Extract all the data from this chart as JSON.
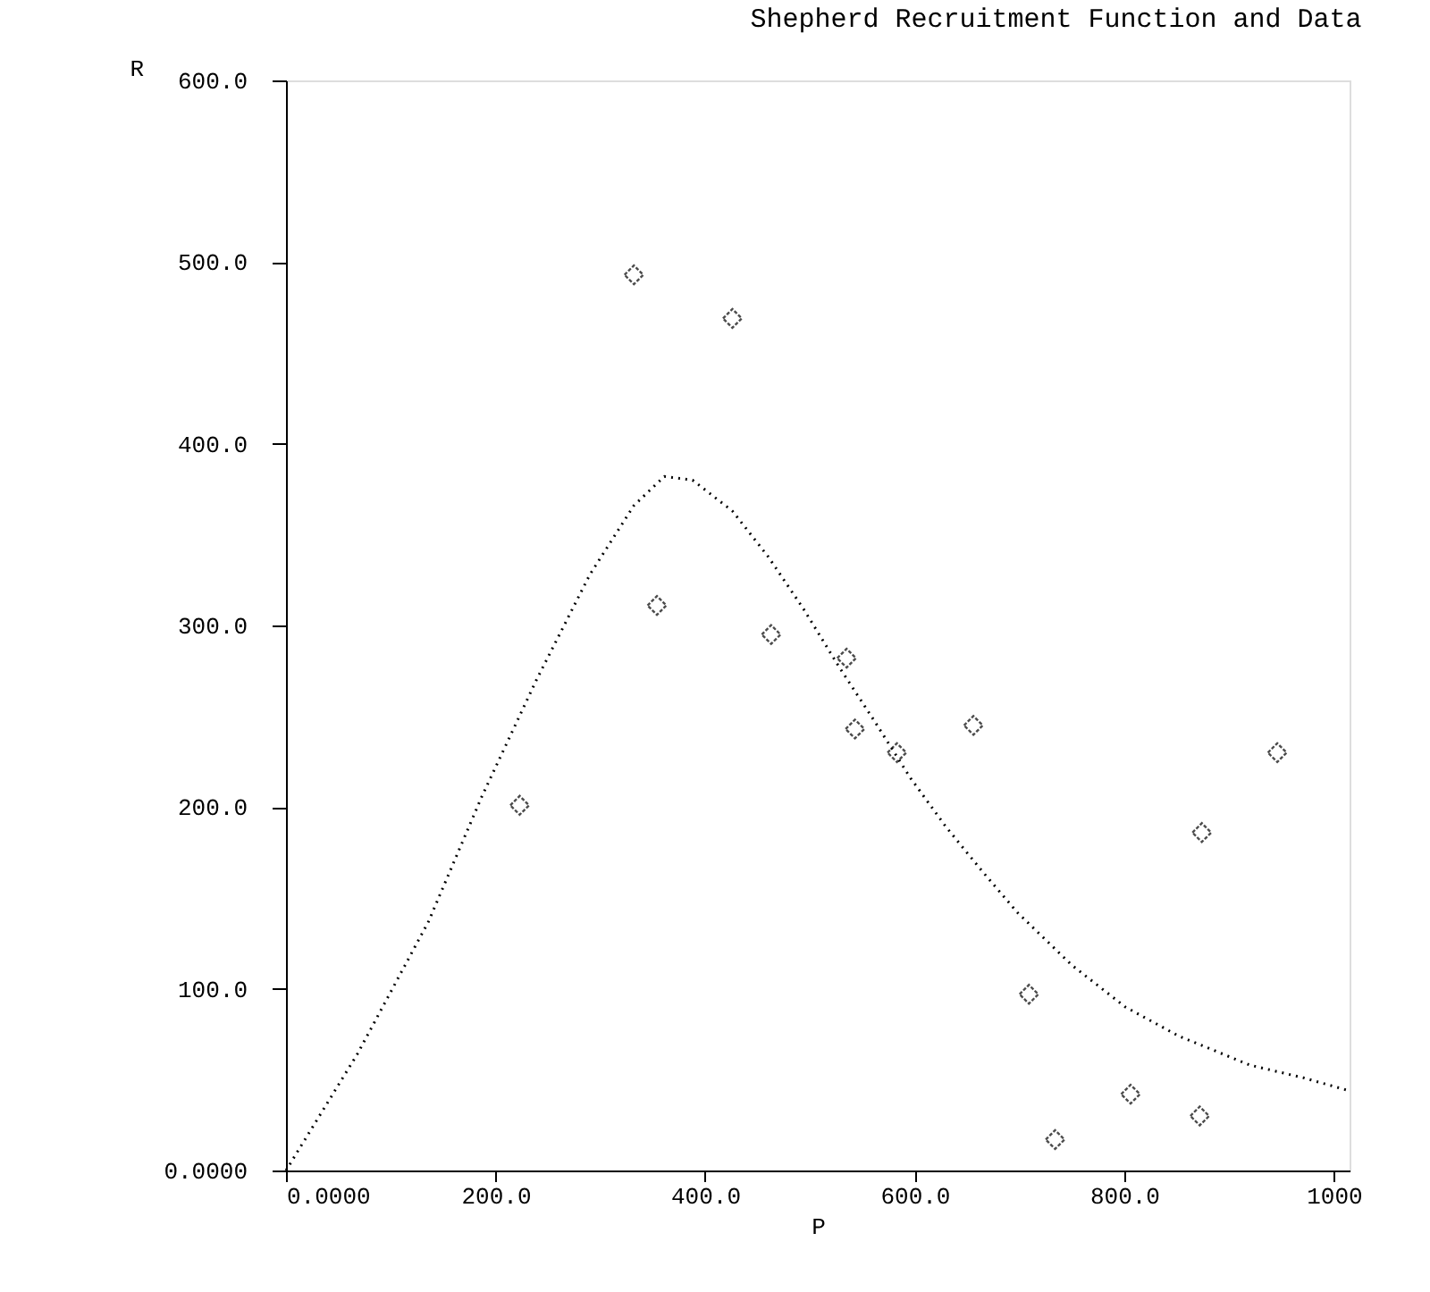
{
  "chart_data": {
    "type": "scatter",
    "title": "Shepherd Recruitment Function and Data",
    "xlabel": "P",
    "ylabel": "R",
    "xlim": [
      0,
      1015
    ],
    "ylim": [
      0,
      600
    ],
    "xticks": [
      {
        "value": 0,
        "label": "0.0000"
      },
      {
        "value": 200,
        "label": "200.0"
      },
      {
        "value": 400,
        "label": "400.0"
      },
      {
        "value": 600,
        "label": "600.0"
      },
      {
        "value": 800,
        "label": "800.0"
      },
      {
        "value": 1000,
        "label": "1000"
      }
    ],
    "yticks": [
      {
        "value": 0,
        "label": "0.0000"
      },
      {
        "value": 100,
        "label": "100.0"
      },
      {
        "value": 200,
        "label": "200.0"
      },
      {
        "value": 300,
        "label": "300.0"
      },
      {
        "value": 400,
        "label": "400.0"
      },
      {
        "value": 500,
        "label": "500.0"
      },
      {
        "value": 600,
        "label": "600.0"
      }
    ],
    "grid": false,
    "series": [
      {
        "marker": "diamond",
        "color": "#000000",
        "x": [
          223,
          332,
          354,
          426,
          463,
          535,
          543,
          583,
          656,
          709,
          734,
          806,
          872,
          874,
          946
        ],
        "values": [
          201,
          493,
          311,
          469,
          295,
          282,
          243,
          230,
          245,
          97,
          17,
          42,
          30,
          186,
          230
        ]
      },
      {
        "type": "line",
        "marker": "none",
        "line_style": "dotted",
        "color": "#000000",
        "x": [
          0,
          68,
          136,
          187,
          239,
          290,
          332,
          361,
          388,
          426,
          460,
          494,
          528,
          562,
          596,
          630,
          664,
          698,
          750,
          801,
          852,
          920,
          971,
          1014
        ],
        "values": [
          0,
          64,
          137,
          206,
          270,
          328,
          366,
          382,
          380,
          363,
          338,
          309,
          277,
          247,
          216,
          189,
          165,
          142,
          113,
          90,
          74,
          58,
          51,
          44
        ]
      }
    ]
  }
}
